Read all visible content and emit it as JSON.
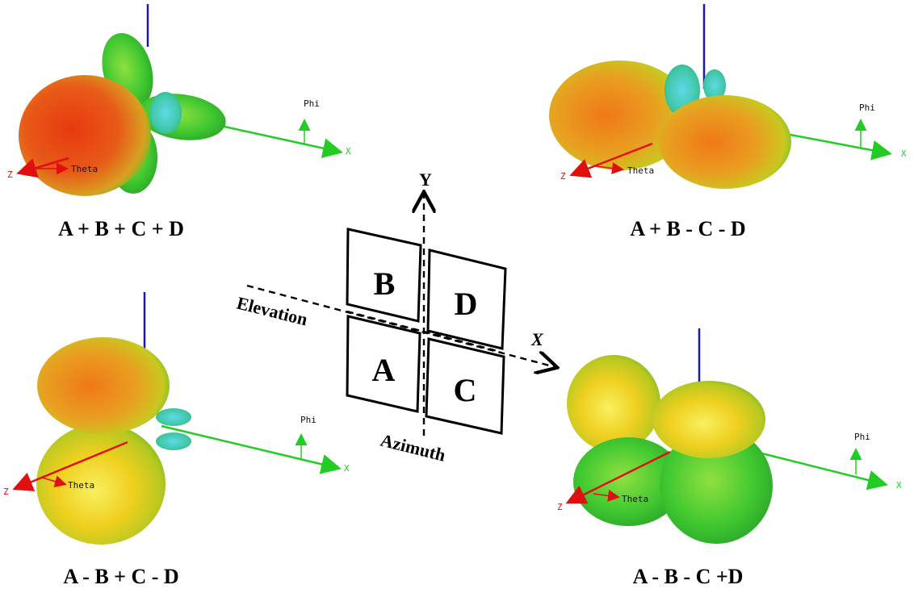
{
  "colors": {
    "z_axis": "#e01010",
    "x_axis": "#22cc22",
    "vertical_axis": "#1a1aa8",
    "lobe_hot": "#d83010",
    "lobe_warm": "#f0a020",
    "lobe_mid": "#e8e020",
    "lobe_cool": "#40d030",
    "lobe_cold": "#30c8d8"
  },
  "diagram": {
    "y_axis_label": "Y",
    "x_axis_label": "X",
    "elevation_label": "Elevation",
    "azimuth_label": "Azimuth",
    "quadrants": {
      "a": "A",
      "b": "B",
      "c": "C",
      "d": "D"
    }
  },
  "plots": [
    {
      "caption": "A + B + C + D",
      "axis_labels": {
        "phi": "Phi",
        "theta": "Theta",
        "x": "X",
        "z": "Z"
      }
    },
    {
      "caption": "A + B - C - D",
      "axis_labels": {
        "phi": "Phi",
        "theta": "Theta",
        "x": "X",
        "z": "Z"
      }
    },
    {
      "caption": "A - B + C - D",
      "axis_labels": {
        "phi": "Phi",
        "theta": "Theta",
        "x": "X",
        "z": "Z"
      }
    },
    {
      "caption": "A - B - C +D",
      "axis_labels": {
        "phi": "Phi",
        "theta": "Theta",
        "x": "X",
        "z": "Z"
      }
    }
  ]
}
